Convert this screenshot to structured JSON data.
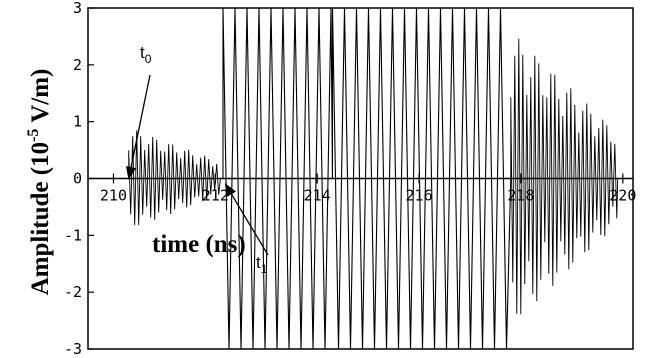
{
  "chart_data": {
    "type": "line",
    "title": "",
    "xlabel": "time (ns)",
    "ylabel": "Amplitude (10^-5 V/m)",
    "ylabel_parts": {
      "main": "Amplitude (10",
      "exp": "-5",
      "unit": " V/m)"
    },
    "xlim": [
      209.5,
      220.2
    ],
    "ylim": [
      -3,
      3
    ],
    "x_ticks": [
      210,
      212,
      214,
      216,
      218,
      220
    ],
    "x_tick_labels": [
      "210",
      "212",
      "214",
      "216",
      "218",
      "220"
    ],
    "y_ticks": [
      -3,
      -2,
      -1,
      0,
      1,
      2,
      3
    ],
    "y_tick_labels": [
      "-3",
      "-2",
      "-1",
      "0",
      "1",
      "2",
      "3"
    ],
    "grid": false,
    "series": [
      {
        "segments": [
          {
            "x_start": 209.5,
            "x_end": 210.3,
            "amplitude_envelope": [
              0,
              0
            ]
          },
          {
            "x_start": 210.3,
            "x_end": 212.1,
            "amplitude_envelope": [
              0.9,
              0.3
            ]
          },
          {
            "x_start": 212.15,
            "x_end": 214.3,
            "amplitude_envelope": [
              3,
              3
            ]
          },
          {
            "x_start": 214.3,
            "x_end": 217.8,
            "amplitude_envelope": [
              3,
              3
            ]
          },
          {
            "x_start": 217.8,
            "x_end": 219.9,
            "amplitude_envelope": [
              2.6,
              0.8
            ]
          }
        ],
        "color": "#000000"
      }
    ],
    "annotations": [
      {
        "text": "t",
        "subscript": "0",
        "target_x": 210.3,
        "target_y": 0
      },
      {
        "text": "t",
        "subscript": "1",
        "target_x": 212.2,
        "target_y": -0.1
      }
    ]
  }
}
